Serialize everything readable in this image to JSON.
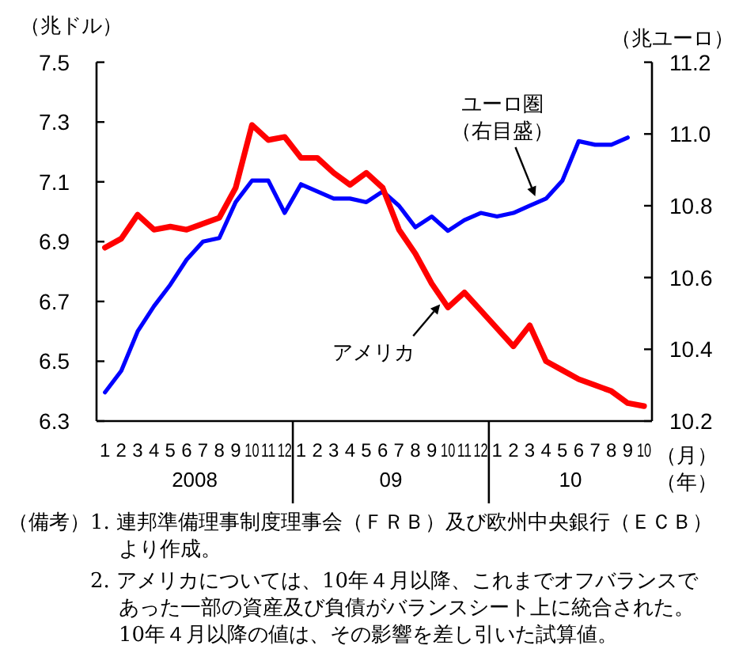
{
  "chart_data": {
    "type": "line",
    "ylabel": "（兆ドル）",
    "y2label": "（兆ユーロ）",
    "xlabel": "（月）（年）",
    "x": [
      "2008-01",
      "2008-02",
      "2008-03",
      "2008-04",
      "2008-05",
      "2008-06",
      "2008-07",
      "2008-08",
      "2008-09",
      "2008-10",
      "2008-11",
      "2008-12",
      "2009-01",
      "2009-02",
      "2009-03",
      "2009-04",
      "2009-05",
      "2009-06",
      "2009-07",
      "2009-08",
      "2009-09",
      "2009-10",
      "2009-11",
      "2009-12",
      "2010-01",
      "2010-02",
      "2010-03",
      "2010-04",
      "2010-05",
      "2010-06",
      "2010-07",
      "2010-08",
      "2010-09",
      "2010-10"
    ],
    "xlim": [
      "2007-12-16",
      "2010-10-16"
    ],
    "xticks": [
      {
        "value": "2008-01",
        "label": "1"
      },
      {
        "value": "2008-02",
        "label": "2"
      },
      {
        "value": "2008-03",
        "label": "3"
      },
      {
        "value": "2008-04",
        "label": "4"
      },
      {
        "value": "2008-05",
        "label": "5"
      },
      {
        "value": "2008-06",
        "label": "6"
      },
      {
        "value": "2008-07",
        "label": "7"
      },
      {
        "value": "2008-08",
        "label": "8"
      },
      {
        "value": "2008-09",
        "label": "9"
      },
      {
        "value": "2008-10",
        "label": "10"
      },
      {
        "value": "2008-11",
        "label": "11"
      },
      {
        "value": "2008-12",
        "label": "12"
      },
      {
        "value": "2009-01",
        "label": "1"
      },
      {
        "value": "2009-02",
        "label": "2"
      },
      {
        "value": "2009-03",
        "label": "3"
      },
      {
        "value": "2009-04",
        "label": "4"
      },
      {
        "value": "2009-05",
        "label": "5"
      },
      {
        "value": "2009-06",
        "label": "6"
      },
      {
        "value": "2009-07",
        "label": "7"
      },
      {
        "value": "2009-08",
        "label": "8"
      },
      {
        "value": "2009-09",
        "label": "9"
      },
      {
        "value": "2009-10",
        "label": "10"
      },
      {
        "value": "2009-11",
        "label": "11"
      },
      {
        "value": "2009-12",
        "label": "12"
      },
      {
        "value": "2010-01",
        "label": "1"
      },
      {
        "value": "2010-02",
        "label": "2"
      },
      {
        "value": "2010-03",
        "label": "3"
      },
      {
        "value": "2010-04",
        "label": "4"
      },
      {
        "value": "2010-05",
        "label": "5"
      },
      {
        "value": "2010-06",
        "label": "6"
      },
      {
        "value": "2010-07",
        "label": "7"
      },
      {
        "value": "2010-08",
        "label": "8"
      },
      {
        "value": "2010-09",
        "label": "9"
      },
      {
        "value": "2010-10",
        "label": "10"
      }
    ],
    "ylim": [
      6.3,
      7.5
    ],
    "yticks": [
      6.3,
      6.5,
      6.7,
      6.9,
      7.1,
      7.3,
      7.5
    ],
    "y2lim": [
      10.2,
      11.2
    ],
    "y2ticks": [
      10.2,
      10.4,
      10.6,
      10.8,
      {
        "value": 11,
        "label": "11.0"
      },
      11.2
    ],
    "series": [
      {
        "name": "ユーロ圏（右目盛）",
        "color": "#0000ff",
        "axis": "y2",
        "values": [
          10.28,
          10.34,
          10.45,
          10.52,
          10.58,
          10.65,
          10.7,
          10.71,
          10.81,
          10.87,
          10.87,
          10.78,
          10.86,
          10.84,
          10.82,
          10.82,
          10.81,
          10.84,
          10.8,
          10.74,
          10.77,
          10.73,
          10.76,
          10.78,
          10.77,
          10.78,
          10.8,
          10.82,
          10.87,
          10.98,
          10.97,
          10.97,
          10.99,
          null
        ]
      },
      {
        "name": "アメリカ",
        "color": "#ff0000",
        "values": [
          6.88,
          6.91,
          6.99,
          6.94,
          6.95,
          6.94,
          6.96,
          6.98,
          7.08,
          7.29,
          7.24,
          7.25,
          7.18,
          7.18,
          7.13,
          7.09,
          7.13,
          7.08,
          6.94,
          6.86,
          6.76,
          6.68,
          6.73,
          6.67,
          6.61,
          6.55,
          6.62,
          6.5,
          6.47,
          6.44,
          6.42,
          6.4,
          6.36,
          6.35
        ]
      }
    ],
    "annotations": [
      "2008",
      "09",
      "10",
      "（備考）1. 連邦準備理事制度理事会（ＦＲＢ）及び欧州中央銀行（ＥＣＢ）より作成。",
      "2. アメリカについては、10年４月以降、これまでオフバランスであった一部の資産及び負債がバランスシート上に統合された。10年４月以降の値は、その影響を差し引いた試算値。"
    ]
  }
}
